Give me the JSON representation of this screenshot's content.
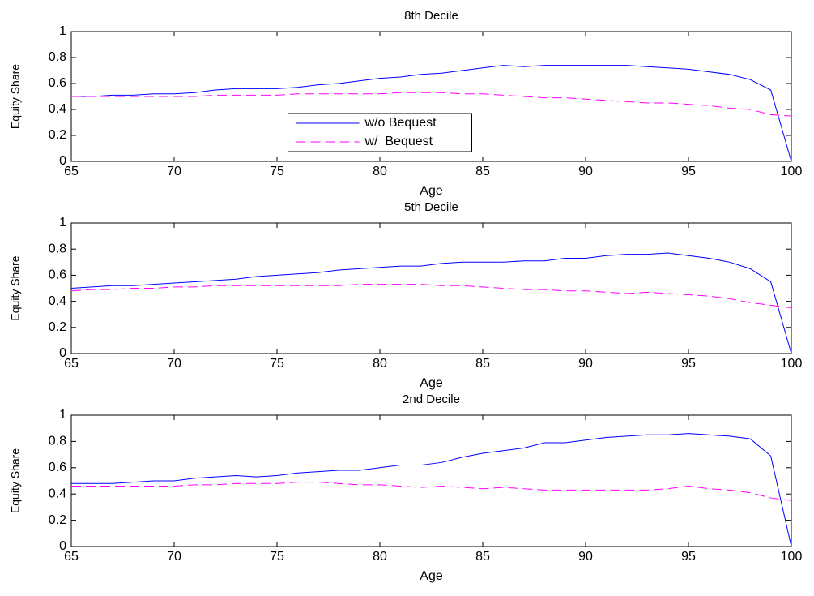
{
  "chart_data": [
    {
      "type": "line",
      "title": "8th Decile",
      "xlabel": "Age",
      "ylabel": "Equity Share",
      "x": [
        65,
        66,
        67,
        68,
        69,
        70,
        71,
        72,
        73,
        74,
        75,
        76,
        77,
        78,
        79,
        80,
        81,
        82,
        83,
        84,
        85,
        86,
        87,
        88,
        89,
        90,
        91,
        92,
        93,
        94,
        95,
        96,
        97,
        98,
        99,
        100
      ],
      "xlim": [
        65,
        100
      ],
      "xticks": [
        65,
        70,
        75,
        80,
        85,
        90,
        95,
        100
      ],
      "ylim": [
        0,
        1
      ],
      "yticks": [
        0,
        0.2,
        0.4,
        0.6,
        0.8,
        1
      ],
      "legend": "lower center",
      "series": [
        {
          "name": "w/o Bequest",
          "color": "#0000ff",
          "dash": false,
          "values": [
            0.5,
            0.5,
            0.51,
            0.51,
            0.52,
            0.52,
            0.53,
            0.55,
            0.56,
            0.56,
            0.56,
            0.57,
            0.59,
            0.6,
            0.62,
            0.64,
            0.65,
            0.67,
            0.68,
            0.7,
            0.72,
            0.74,
            0.73,
            0.74,
            0.74,
            0.74,
            0.74,
            0.74,
            0.73,
            0.72,
            0.71,
            0.69,
            0.67,
            0.63,
            0.55,
            0
          ]
        },
        {
          "name": "w/  Bequest",
          "color": "#ff00ff",
          "dash": true,
          "values": [
            0.5,
            0.5,
            0.5,
            0.5,
            0.5,
            0.5,
            0.5,
            0.51,
            0.51,
            0.51,
            0.51,
            0.52,
            0.52,
            0.52,
            0.52,
            0.52,
            0.53,
            0.53,
            0.53,
            0.52,
            0.52,
            0.51,
            0.5,
            0.49,
            0.49,
            0.48,
            0.47,
            0.46,
            0.45,
            0.45,
            0.44,
            0.43,
            0.41,
            0.4,
            0.36,
            0.35
          ]
        }
      ]
    },
    {
      "type": "line",
      "title": "5th Decile",
      "xlabel": "Age",
      "ylabel": "Equity Share",
      "x": [
        65,
        66,
        67,
        68,
        69,
        70,
        71,
        72,
        73,
        74,
        75,
        76,
        77,
        78,
        79,
        80,
        81,
        82,
        83,
        84,
        85,
        86,
        87,
        88,
        89,
        90,
        91,
        92,
        93,
        94,
        95,
        96,
        97,
        98,
        99,
        100
      ],
      "xlim": [
        65,
        100
      ],
      "xticks": [
        65,
        70,
        75,
        80,
        85,
        90,
        95,
        100
      ],
      "ylim": [
        0,
        1
      ],
      "yticks": [
        0,
        0.2,
        0.4,
        0.6,
        0.8,
        1
      ],
      "series": [
        {
          "color": "#0000ff",
          "dash": false,
          "values": [
            0.5,
            0.51,
            0.52,
            0.52,
            0.53,
            0.54,
            0.55,
            0.56,
            0.57,
            0.59,
            0.6,
            0.61,
            0.62,
            0.64,
            0.65,
            0.66,
            0.67,
            0.67,
            0.69,
            0.7,
            0.7,
            0.7,
            0.71,
            0.71,
            0.73,
            0.73,
            0.75,
            0.76,
            0.76,
            0.77,
            0.75,
            0.73,
            0.7,
            0.65,
            0.55,
            0
          ]
        },
        {
          "color": "#ff00ff",
          "dash": true,
          "values": [
            0.48,
            0.49,
            0.49,
            0.5,
            0.5,
            0.51,
            0.51,
            0.52,
            0.52,
            0.52,
            0.52,
            0.52,
            0.52,
            0.52,
            0.53,
            0.53,
            0.53,
            0.53,
            0.52,
            0.52,
            0.51,
            0.5,
            0.49,
            0.49,
            0.48,
            0.48,
            0.47,
            0.46,
            0.47,
            0.46,
            0.45,
            0.44,
            0.42,
            0.39,
            0.37,
            0.35
          ]
        }
      ]
    },
    {
      "type": "line",
      "title": "2nd Decile",
      "xlabel": "Age",
      "ylabel": "Equity Share",
      "x": [
        65,
        66,
        67,
        68,
        69,
        70,
        71,
        72,
        73,
        74,
        75,
        76,
        77,
        78,
        79,
        80,
        81,
        82,
        83,
        84,
        85,
        86,
        87,
        88,
        89,
        90,
        91,
        92,
        93,
        94,
        95,
        96,
        97,
        98,
        99,
        100
      ],
      "xlim": [
        65,
        100
      ],
      "xticks": [
        65,
        70,
        75,
        80,
        85,
        90,
        95,
        100
      ],
      "ylim": [
        0,
        1
      ],
      "yticks": [
        0,
        0.2,
        0.4,
        0.6,
        0.8,
        1
      ],
      "series": [
        {
          "color": "#0000ff",
          "dash": false,
          "values": [
            0.48,
            0.48,
            0.48,
            0.49,
            0.5,
            0.5,
            0.52,
            0.53,
            0.54,
            0.53,
            0.54,
            0.56,
            0.57,
            0.58,
            0.58,
            0.6,
            0.62,
            0.62,
            0.64,
            0.68,
            0.71,
            0.73,
            0.75,
            0.79,
            0.79,
            0.81,
            0.83,
            0.84,
            0.85,
            0.85,
            0.86,
            0.85,
            0.84,
            0.82,
            0.69,
            0
          ]
        },
        {
          "color": "#ff00ff",
          "dash": true,
          "values": [
            0.46,
            0.46,
            0.46,
            0.46,
            0.46,
            0.46,
            0.47,
            0.47,
            0.48,
            0.48,
            0.48,
            0.49,
            0.49,
            0.48,
            0.47,
            0.47,
            0.46,
            0.45,
            0.46,
            0.45,
            0.44,
            0.45,
            0.44,
            0.43,
            0.43,
            0.43,
            0.43,
            0.43,
            0.43,
            0.44,
            0.46,
            0.44,
            0.43,
            0.41,
            0.37,
            0.35
          ]
        }
      ]
    }
  ]
}
